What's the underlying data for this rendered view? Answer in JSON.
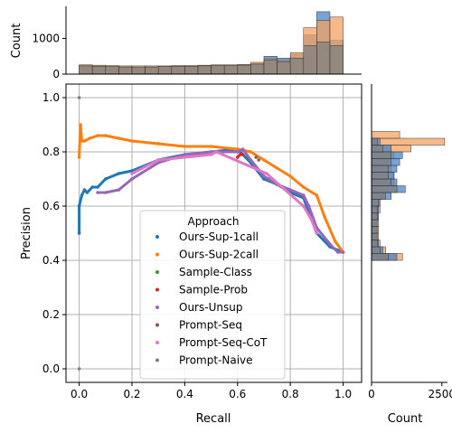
{
  "chart_data": {
    "type": "scatter",
    "xlabel": "Recall",
    "ylabel": "Precision",
    "xlim": [
      -0.05,
      1.07
    ],
    "ylim": [
      -0.05,
      1.05
    ],
    "xticks": [
      0.0,
      0.2,
      0.4,
      0.6,
      0.8,
      1.0
    ],
    "yticks": [
      0.0,
      0.2,
      0.4,
      0.6,
      0.8,
      1.0
    ],
    "xtick_labels": [
      "0.0",
      "0.2",
      "0.4",
      "0.6",
      "0.8",
      "1.0"
    ],
    "ytick_labels": [
      "0.0",
      "0.2",
      "0.4",
      "0.6",
      "0.8",
      "1.0"
    ],
    "grid": true,
    "legend": {
      "title": "Approach",
      "placement": "lower-center"
    },
    "series": [
      {
        "name": "Ours-Sup-1call",
        "color": "#1f77b4",
        "x": [
          0.0,
          0.0,
          0.01,
          0.02,
          0.03,
          0.05,
          0.07,
          0.1,
          0.15,
          0.2,
          0.3,
          0.4,
          0.5,
          0.6,
          0.65,
          0.7,
          0.75,
          0.8,
          0.85,
          0.9,
          0.95,
          1.0
        ],
        "y": [
          0.5,
          0.6,
          0.64,
          0.66,
          0.65,
          0.67,
          0.67,
          0.7,
          0.72,
          0.73,
          0.77,
          0.79,
          0.8,
          0.81,
          0.76,
          0.7,
          0.68,
          0.65,
          0.63,
          0.5,
          0.45,
          0.43
        ]
      },
      {
        "name": "Ours-Sup-2call",
        "color": "#ff7f0e",
        "x": [
          0.0,
          0.005,
          0.01,
          0.02,
          0.04,
          0.07,
          0.1,
          0.15,
          0.2,
          0.3,
          0.4,
          0.5,
          0.6,
          0.65,
          0.7,
          0.75,
          0.8,
          0.85,
          0.9,
          0.93,
          0.97,
          1.0
        ],
        "y": [
          0.78,
          0.9,
          0.84,
          0.84,
          0.85,
          0.86,
          0.86,
          0.85,
          0.84,
          0.83,
          0.82,
          0.82,
          0.81,
          0.8,
          0.77,
          0.74,
          0.71,
          0.67,
          0.64,
          0.56,
          0.47,
          0.43
        ]
      },
      {
        "name": "Sample-Class",
        "color": "#2ca02c",
        "x": [
          0.72,
          0.73,
          0.74,
          0.75
        ],
        "y": [
          0.7,
          0.69,
          0.69,
          0.68
        ]
      },
      {
        "name": "Sample-Prob",
        "color": "#d62728",
        "x": [
          0.6,
          0.61,
          0.62
        ],
        "y": [
          0.78,
          0.79,
          0.79
        ]
      },
      {
        "name": "Ours-Unsup",
        "color": "#9467bd",
        "x": [
          0.07,
          0.1,
          0.15,
          0.2,
          0.3,
          0.4,
          0.5,
          0.6,
          0.62,
          0.65,
          0.7,
          0.75,
          0.8,
          0.85,
          0.87,
          0.9,
          0.95,
          0.98,
          1.0
        ],
        "y": [
          0.65,
          0.65,
          0.66,
          0.7,
          0.76,
          0.79,
          0.8,
          0.8,
          0.81,
          0.77,
          0.71,
          0.68,
          0.66,
          0.64,
          0.6,
          0.52,
          0.46,
          0.43,
          0.43
        ]
      },
      {
        "name": "Prompt-Seq",
        "color": "#8c564b",
        "x": [
          0.67,
          0.68
        ],
        "y": [
          0.78,
          0.77
        ]
      },
      {
        "name": "Prompt-Seq-CoT",
        "color": "#e377c2",
        "x": [
          0.2,
          0.3,
          0.5,
          0.52,
          0.71,
          0.85,
          0.88,
          0.9
        ],
        "y": [
          0.72,
          0.77,
          0.79,
          0.8,
          0.72,
          0.6,
          0.55,
          0.5
        ]
      },
      {
        "name": "Prompt-Naive",
        "color": "#7f7f7f",
        "x": [
          0.0,
          0.0
        ],
        "y": [
          0.0,
          1.0
        ]
      }
    ],
    "top_hist": {
      "ylabel": "Count",
      "yticks": [
        0,
        1000
      ],
      "ytick_labels": [
        "0",
        "1000"
      ],
      "ylim": [
        0,
        1900
      ],
      "bins": [
        0.0,
        0.05,
        0.1,
        0.15,
        0.2,
        0.25,
        0.3,
        0.35,
        0.4,
        0.45,
        0.5,
        0.55,
        0.6,
        0.65,
        0.7,
        0.75,
        0.8,
        0.85,
        0.9,
        0.95,
        1.0
      ],
      "series": [
        {
          "name": "Ours-Sup-1call",
          "color": "#4a86c5",
          "counts": [
            250,
            230,
            220,
            210,
            200,
            210,
            220,
            230,
            230,
            240,
            250,
            250,
            260,
            300,
            500,
            450,
            550,
            1100,
            1750,
            950
          ]
        },
        {
          "name": "Ours-Sup-2call",
          "color": "#f4a261",
          "counts": [
            260,
            250,
            240,
            230,
            230,
            230,
            230,
            240,
            240,
            250,
            260,
            260,
            270,
            330,
            430,
            380,
            600,
            1300,
            1500,
            1600
          ]
        },
        {
          "name": "Ours-Unsup",
          "color": "#7f7f7f",
          "counts": [
            230,
            220,
            210,
            200,
            200,
            200,
            210,
            220,
            220,
            230,
            240,
            240,
            250,
            280,
            400,
            350,
            450,
            800,
            900,
            800
          ]
        }
      ]
    },
    "right_hist": {
      "xlabel": "Count",
      "xticks": [
        0,
        2500
      ],
      "xtick_labels": [
        "0",
        "2500"
      ],
      "xlim": [
        0,
        2700
      ],
      "bins": [
        0.4,
        0.425,
        0.45,
        0.475,
        0.5,
        0.525,
        0.55,
        0.575,
        0.6,
        0.625,
        0.65,
        0.675,
        0.7,
        0.725,
        0.75,
        0.775,
        0.8,
        0.825,
        0.85,
        0.875
      ],
      "series": [
        {
          "name": "Ours-Sup-2call",
          "color": "#f4a261",
          "counts": [
            1100,
            500,
            300,
            250,
            250,
            250,
            250,
            300,
            300,
            400,
            600,
            800,
            800,
            700,
            600,
            800,
            1400,
            2600,
            1000
          ]
        },
        {
          "name": "Ours-Sup-1call",
          "color": "#4a86c5",
          "counts": [
            900,
            400,
            250,
            200,
            200,
            200,
            250,
            250,
            300,
            700,
            1200,
            900,
            800,
            900,
            1000,
            1100,
            700,
            300,
            0
          ]
        },
        {
          "name": "Ours-Unsup",
          "color": "#7f7f7f",
          "counts": [
            600,
            300,
            200,
            200,
            200,
            200,
            200,
            200,
            250,
            500,
            900,
            700,
            600,
            600,
            700,
            700,
            400,
            200,
            0
          ]
        }
      ]
    }
  }
}
